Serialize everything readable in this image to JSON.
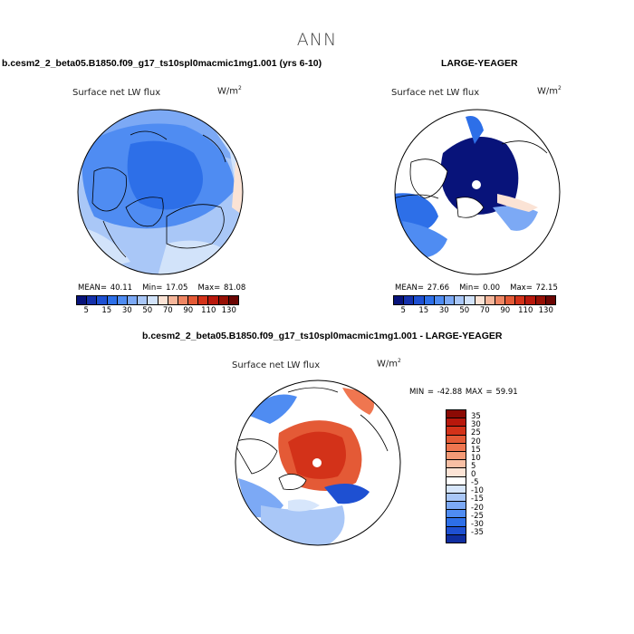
{
  "figure": {
    "title": "ANN",
    "left_case": "b.cesm2_2_beta05.B1850.f09_g17_ts10spl0macmic1mg1.001 (yrs 6-10)",
    "right_case": "LARGE-YEAGER",
    "diff_case": "b.cesm2_2_beta05.B1850.f09_g17_ts10spl0macmic1mg1.001 - LARGE-YEAGER"
  },
  "panels": [
    {
      "variable": "Surface net LW flux",
      "units": "W/m",
      "units_exp": "2",
      "mean_label": "MEAN=",
      "mean": "40.11",
      "min_label": "Min=",
      "min": "17.05",
      "max_label": "Max=",
      "max": "81.08"
    },
    {
      "variable": "Surface net LW flux",
      "units": "W/m",
      "units_exp": "2",
      "mean_label": "MEAN=",
      "mean": "27.66",
      "min_label": "Min=",
      "min": "0.00",
      "max_label": "Max=",
      "max": "72.15"
    },
    {
      "variable": "Surface net LW flux",
      "units": "W/m",
      "units_exp": "2",
      "minmax_text": "MIN = -42.88 MAX =  59.91"
    }
  ],
  "colorbar_main": {
    "labels": [
      "5",
      "15",
      "30",
      "50",
      "70",
      "90",
      "110",
      "130"
    ],
    "colors": [
      "#08137a",
      "#1531ab",
      "#1e50d2",
      "#2d6fe8",
      "#4f8cf2",
      "#7ca9f5",
      "#a9c7f7",
      "#d2e3fa",
      "#fbe3d5",
      "#f6b69a",
      "#ef8663",
      "#e45a36",
      "#d33219",
      "#b8180c",
      "#961005",
      "#6b0603"
    ]
  },
  "colorbar_diff": {
    "labels": [
      "35",
      "30",
      "25",
      "20",
      "15",
      "10",
      "5",
      "0",
      "-5",
      "-10",
      "-15",
      "-20",
      "-25",
      "-30",
      "-35"
    ],
    "colors": [
      "#8b0a04",
      "#b8180c",
      "#d33219",
      "#e45a36",
      "#ef7650",
      "#f49a76",
      "#f8bfa4",
      "#fde4d6",
      "#ffffff",
      "#d7e6fb",
      "#a9c7f7",
      "#7ca9f5",
      "#4f8cf2",
      "#2d6fe8",
      "#1e50d2",
      "#0f2ea0"
    ]
  }
}
